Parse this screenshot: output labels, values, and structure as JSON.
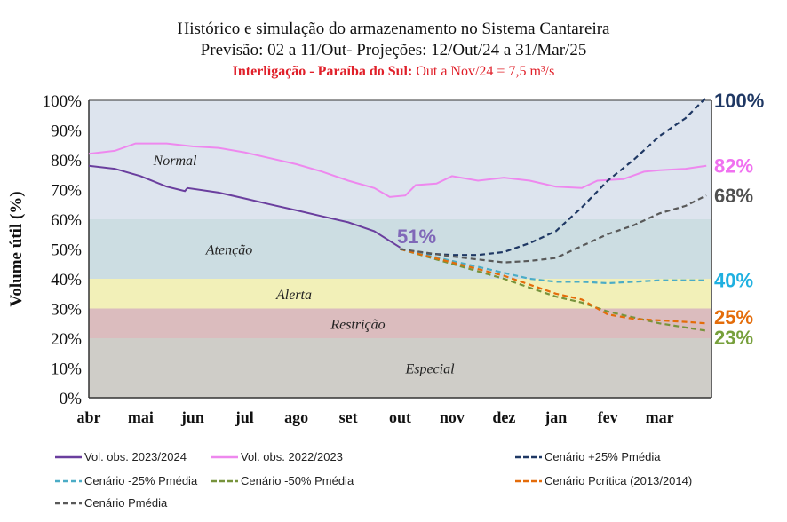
{
  "title": {
    "line1": "Histórico e simulação do armazenamento no Sistema Cantareira",
    "line2": "Previsão: 02 a 11/Out-  Projeções: 12/Out/24 a 31/Mar/25",
    "line3_bold": "Interligação - Paraíba do Sul:",
    "line3_rest": "Out a Nov/24 = 7,5 m³/s"
  },
  "chart_data": {
    "type": "line",
    "ylabel": "Volume útil (%)",
    "ylim": [
      0,
      100
    ],
    "yticks": [
      "0%",
      "10%",
      "20%",
      "30%",
      "40%",
      "50%",
      "60%",
      "70%",
      "80%",
      "90%",
      "100%"
    ],
    "xticks": [
      "abr",
      "mai",
      "jun",
      "jul",
      "ago",
      "set",
      "out",
      "nov",
      "dez",
      "jan",
      "fev",
      "mar"
    ],
    "x_unit_note": "x in months from start of April",
    "bands": [
      {
        "label": "Normal",
        "from": 60,
        "to": 100,
        "color": "#dde4ee"
      },
      {
        "label": "Atenção",
        "from": 40,
        "to": 60,
        "color": "#ccdde2"
      },
      {
        "label": "Alerta",
        "from": 30,
        "to": 40,
        "color": "#f2f0b8"
      },
      {
        "label": "Restrição",
        "from": 20,
        "to": 30,
        "color": "#dbbcbe"
      },
      {
        "label": "Especial",
        "from": 0,
        "to": 20,
        "color": "#cfcdc8"
      }
    ],
    "annotation": {
      "text": "51%",
      "color": "#8068b8"
    },
    "series": [
      {
        "name": "Vol. obs. 2023/2024",
        "color": "#6a3e9e",
        "dash": false,
        "end_label": "",
        "x": [
          0,
          0.5,
          1,
          1.5,
          1.85,
          1.9,
          2.5,
          3,
          3.5,
          4,
          4.5,
          5,
          5.5,
          6
        ],
        "y": [
          78,
          77,
          74.5,
          71,
          69.5,
          70.5,
          69,
          67,
          65,
          63,
          61,
          59,
          56,
          50.5
        ]
      },
      {
        "name": "Vol. obs. 2022/2023",
        "color": "#ee88ee",
        "dash": false,
        "end_label": "82%",
        "label_color": "#f070f0",
        "x": [
          0,
          0.5,
          0.9,
          1.5,
          2,
          2.5,
          3,
          3.5,
          4,
          4.5,
          5,
          5.5,
          5.8,
          6.1,
          6.3,
          6.7,
          7,
          7.5,
          8,
          8.5,
          9,
          9.5,
          9.8,
          10.3,
          10.7,
          11,
          11.5,
          11.9
        ],
        "y": [
          82,
          83,
          85.5,
          85.5,
          84.5,
          84,
          82.5,
          80.5,
          78.5,
          76,
          73,
          70.5,
          67.5,
          68,
          71.5,
          72,
          74.5,
          73,
          74,
          73,
          71,
          70.5,
          73,
          73.5,
          76,
          76.5,
          77,
          78
        ]
      },
      {
        "name": "Cenário +25% Pmédia",
        "color": "#1f3864",
        "dash": true,
        "end_label": "100%",
        "label_color": "#1f3864",
        "x": [
          6,
          6.5,
          7,
          7.5,
          8,
          8.5,
          9,
          9.5,
          10,
          10.5,
          11,
          11.5,
          11.9
        ],
        "y": [
          50,
          48.5,
          48,
          48,
          49,
          52,
          56,
          64,
          73,
          80,
          88,
          94,
          101
        ]
      },
      {
        "name": "Cenário -25% Pmédia",
        "color": "#4bacc6",
        "dash": true,
        "end_label": "40%",
        "label_color": "#1fb0e0",
        "x": [
          6,
          7,
          8,
          8.5,
          9,
          9.5,
          10,
          10.5,
          11,
          11.9
        ],
        "y": [
          50,
          46,
          42,
          40,
          39,
          39,
          38.5,
          39,
          39.5,
          39.5
        ]
      },
      {
        "name": "Cenário -50% Pmédia",
        "color": "#77933c",
        "dash": true,
        "end_label": "23%",
        "label_color": "#77a03c",
        "x": [
          6,
          7,
          8,
          8.5,
          9,
          9.5,
          10,
          10.5,
          11,
          11.9
        ],
        "y": [
          50,
          45,
          40,
          37,
          34,
          32,
          29,
          27,
          25,
          22.5
        ]
      },
      {
        "name": "Cenário Pcrítica (2013/2014)",
        "color": "#e46c0a",
        "dash": true,
        "end_label": "25%",
        "label_color": "#e46c0a",
        "x": [
          6,
          7,
          8,
          8.5,
          9,
          9.5,
          10,
          10.5,
          11,
          11.5,
          11.9
        ],
        "y": [
          50,
          45.5,
          41,
          38,
          35,
          33,
          28,
          26.5,
          26,
          25.5,
          25
        ]
      },
      {
        "name": "Cenário Pmédia",
        "color": "#595959",
        "dash": true,
        "end_label": "68%",
        "label_color": "#505050",
        "x": [
          6,
          7,
          8,
          8.5,
          9,
          9.5,
          10,
          10.5,
          11,
          11.5,
          11.9
        ],
        "y": [
          50,
          47.5,
          45.5,
          46,
          47,
          51,
          55,
          58,
          62,
          64.5,
          68
        ]
      }
    ]
  }
}
